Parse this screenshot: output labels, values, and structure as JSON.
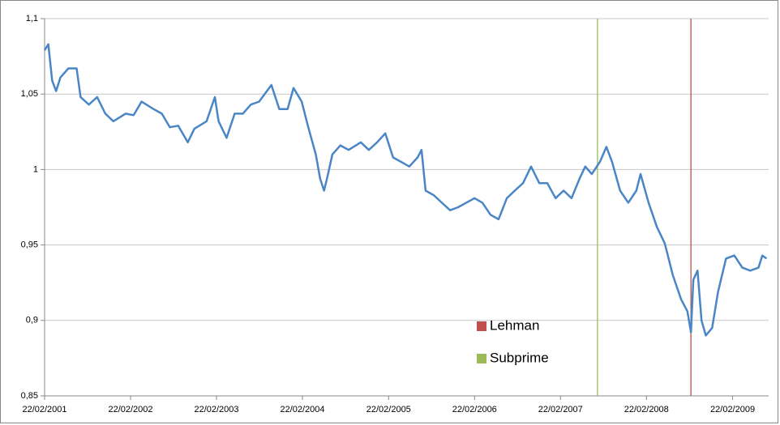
{
  "chart_data": {
    "type": "line",
    "x": [
      "2001-02-22",
      "2001-03-10",
      "2001-03-26",
      "2001-04-12",
      "2001-04-30",
      "2001-06-03",
      "2001-07-08",
      "2001-07-25",
      "2001-08-29",
      "2001-10-03",
      "2001-11-07",
      "2001-12-11",
      "2002-02-01",
      "2002-03-07",
      "2002-04-10",
      "2002-05-31",
      "2002-07-05",
      "2002-08-08",
      "2002-09-12",
      "2002-10-23",
      "2002-11-20",
      "2003-01-11",
      "2003-02-15",
      "2003-03-03",
      "2003-04-06",
      "2003-05-10",
      "2003-06-14",
      "2003-07-18",
      "2003-08-22",
      "2003-10-13",
      "2003-11-16",
      "2003-12-21",
      "2004-01-15",
      "2004-02-19",
      "2004-03-16",
      "2004-04-19",
      "2004-05-07",
      "2004-05-24",
      "2004-06-10",
      "2004-06-28",
      "2004-08-01",
      "2004-09-05",
      "2004-10-27",
      "2004-11-30",
      "2005-01-04",
      "2005-02-08",
      "2005-03-13",
      "2005-04-17",
      "2005-05-21",
      "2005-06-25",
      "2005-07-12",
      "2005-07-29",
      "2005-09-02",
      "2005-10-06",
      "2005-11-10",
      "2005-12-14",
      "2006-02-22",
      "2006-03-27",
      "2006-05-01",
      "2006-06-04",
      "2006-07-09",
      "2006-08-12",
      "2006-09-16",
      "2006-10-20",
      "2006-11-24",
      "2006-12-28",
      "2007-02-01",
      "2007-03-07",
      "2007-04-10",
      "2007-05-14",
      "2007-06-07",
      "2007-07-05",
      "2007-08-08",
      "2007-09-05",
      "2007-09-29",
      "2007-11-02",
      "2007-12-07",
      "2008-01-10",
      "2008-01-28",
      "2008-03-02",
      "2008-04-06",
      "2008-05-10",
      "2008-06-13",
      "2008-07-18",
      "2008-08-14",
      "2008-08-29",
      "2008-09-08",
      "2008-09-26",
      "2008-10-13",
      "2008-10-31",
      "2008-11-27",
      "2008-12-22",
      "2009-01-25",
      "2009-03-01",
      "2009-04-04",
      "2009-05-08",
      "2009-06-12",
      "2009-06-28",
      "2009-07-16"
    ],
    "values": [
      1.079,
      1.083,
      1.059,
      1.052,
      1.061,
      1.067,
      1.067,
      1.048,
      1.043,
      1.048,
      1.037,
      1.032,
      1.037,
      1.036,
      1.045,
      1.04,
      1.037,
      1.028,
      1.029,
      1.018,
      1.027,
      1.032,
      1.048,
      1.032,
      1.021,
      1.037,
      1.037,
      1.043,
      1.045,
      1.056,
      1.04,
      1.04,
      1.054,
      1.045,
      1.029,
      1.01,
      0.994,
      0.986,
      0.997,
      1.01,
      1.016,
      1.013,
      1.018,
      1.013,
      1.018,
      1.024,
      1.008,
      1.005,
      1.002,
      1.008,
      1.013,
      0.986,
      0.983,
      0.978,
      0.973,
      0.975,
      0.981,
      0.978,
      0.97,
      0.967,
      0.981,
      0.986,
      0.991,
      1.002,
      0.991,
      0.991,
      0.981,
      0.986,
      0.981,
      0.994,
      1.002,
      0.997,
      1.005,
      1.015,
      1.005,
      0.986,
      0.978,
      0.986,
      0.997,
      0.978,
      0.962,
      0.951,
      0.93,
      0.914,
      0.906,
      0.892,
      0.927,
      0.933,
      0.9,
      0.89,
      0.895,
      0.919,
      0.941,
      0.943,
      0.935,
      0.933,
      0.935,
      0.943,
      0.941
    ],
    "color": "#4a86c5",
    "xlim": [
      "2001-02-22",
      "2009-07-25"
    ],
    "xticks": [
      {
        "value": "2001-02-22",
        "label": "22/02/2001"
      },
      {
        "value": "2002-02-22",
        "label": "22/02/2002"
      },
      {
        "value": "2003-02-22",
        "label": "22/02/2003"
      },
      {
        "value": "2004-02-22",
        "label": "22/02/2004"
      },
      {
        "value": "2005-02-22",
        "label": "22/02/2005"
      },
      {
        "value": "2006-02-22",
        "label": "22/02/2006"
      },
      {
        "value": "2007-02-22",
        "label": "22/02/2007"
      },
      {
        "value": "2008-02-22",
        "label": "22/02/2008"
      },
      {
        "value": "2009-02-22",
        "label": "22/02/2009"
      }
    ],
    "ylim": [
      0.85,
      1.1
    ],
    "yticks": [
      {
        "value": 0.85,
        "label": "0,85"
      },
      {
        "value": 0.9,
        "label": "0,9"
      },
      {
        "value": 0.95,
        "label": "0,95"
      },
      1,
      {
        "value": 1.05,
        "label": "1,05"
      },
      {
        "value": 1.1,
        "label": "1,1"
      }
    ],
    "grid": true,
    "events": [
      {
        "label": "Lehman",
        "color": "#c0504d",
        "x": "2008-08-29"
      },
      {
        "label": "Subprime",
        "color": "#9bbb59",
        "x": "2007-07-29"
      }
    ]
  }
}
